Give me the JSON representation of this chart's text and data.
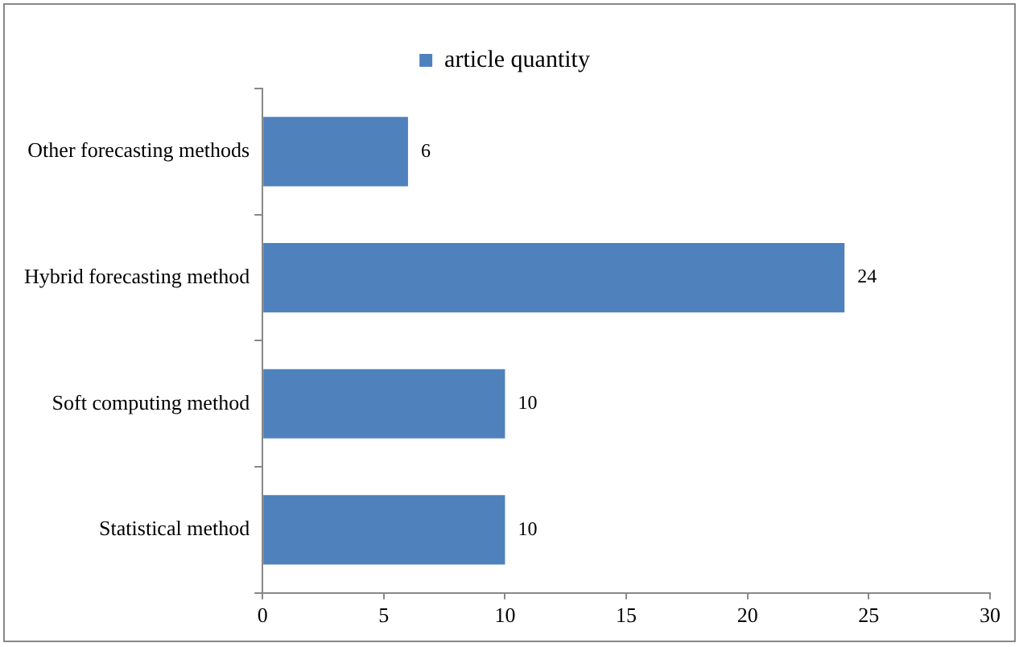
{
  "chart_data": {
    "type": "bar",
    "orientation": "horizontal",
    "categories": [
      "Other forecasting methods",
      "Hybrid forecasting method",
      "Soft computing method",
      "Statistical method"
    ],
    "series": [
      {
        "name": "article quantity",
        "color": "#4f81bd",
        "values": [
          6,
          24,
          10,
          10
        ]
      }
    ],
    "xlim": [
      0,
      30
    ],
    "xticks": [
      0,
      5,
      10,
      15,
      20,
      25,
      30
    ],
    "grid": false,
    "legend": "top",
    "data_labels": true
  }
}
